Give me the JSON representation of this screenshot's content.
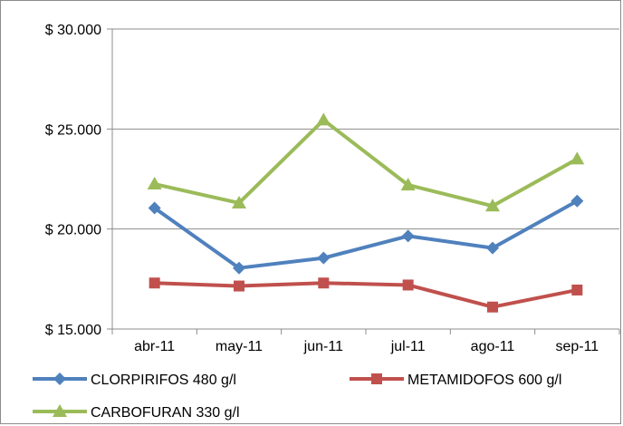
{
  "chart_data": {
    "type": "line",
    "categories": [
      "abr-11",
      "may-11",
      "jun-11",
      "jul-11",
      "ago-11",
      "sep-11"
    ],
    "ylim": [
      15000,
      30000
    ],
    "yticks": [
      15000,
      20000,
      25000,
      30000
    ],
    "ytick_labels": [
      "$ 15.000",
      "$ 20.000",
      "$ 25.000",
      "$ 30.000"
    ],
    "grid": "horizontal",
    "legend_position": "bottom",
    "series": [
      {
        "name": "CLORPIRIFOS 480 g/l",
        "color": "#4f81bd",
        "marker": "diamond",
        "values": [
          21050,
          18050,
          18550,
          19650,
          19050,
          21400
        ]
      },
      {
        "name": "METAMIDOFOS 600 g/l",
        "color": "#c0504d",
        "marker": "square",
        "values": [
          17300,
          17150,
          17300,
          17200,
          16100,
          16950
        ]
      },
      {
        "name": "CARBOFURAN 330 g/l",
        "color": "#9bbb59",
        "marker": "triangle",
        "values": [
          22250,
          21300,
          25450,
          22200,
          21150,
          23500
        ]
      }
    ]
  }
}
